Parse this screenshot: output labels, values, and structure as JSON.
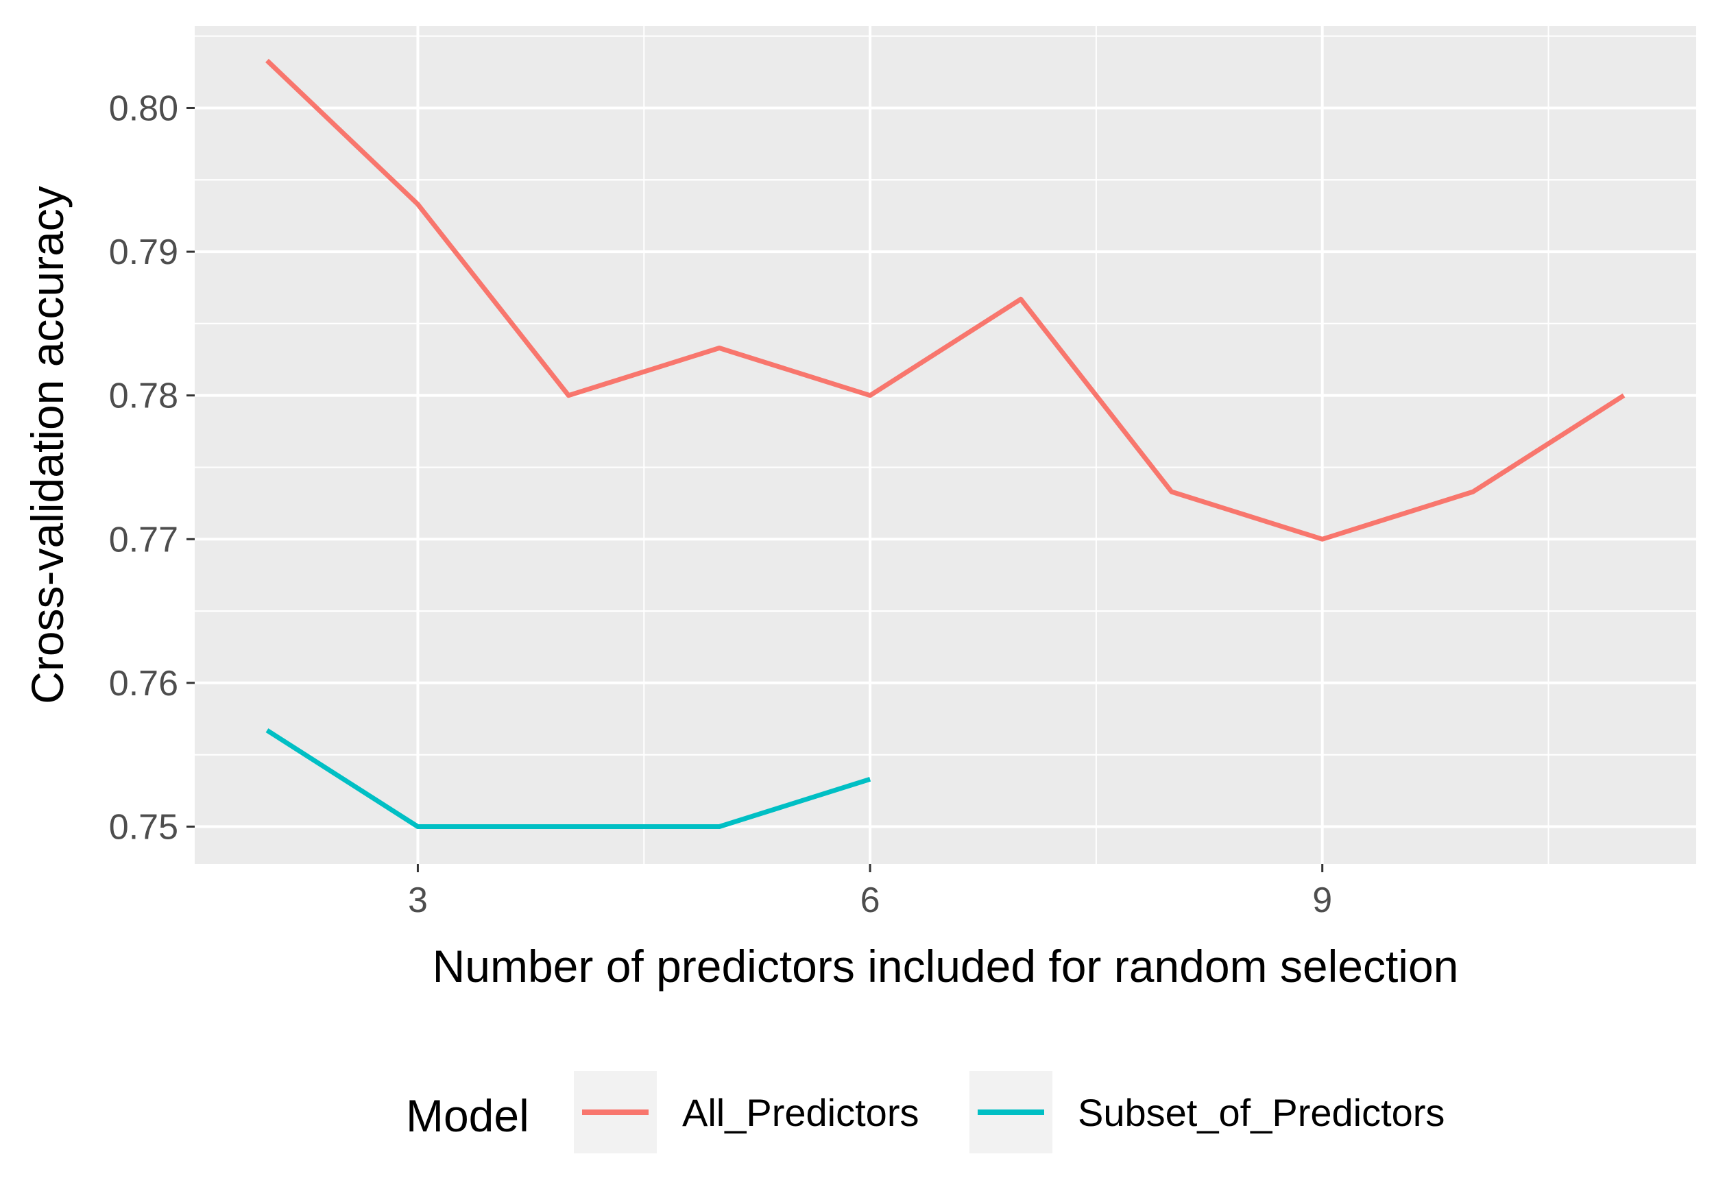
{
  "chart_data": {
    "type": "line",
    "xlabel": "Number of predictors included for random selection",
    "ylabel": "Cross-validation accuracy",
    "xlim": [
      1.52,
      11.48
    ],
    "ylim": [
      0.7474,
      0.8057
    ],
    "x_ticks": [
      3,
      6,
      9
    ],
    "x_tick_labels": [
      "3",
      "6",
      "9"
    ],
    "x_minor_ticks": [
      4.5,
      7.5,
      10.5
    ],
    "y_ticks": [
      0.75,
      0.76,
      0.77,
      0.78,
      0.79,
      0.8
    ],
    "y_tick_labels": [
      "0.75",
      "0.76",
      "0.77",
      "0.78",
      "0.79",
      "0.80"
    ],
    "grid": true,
    "legend": {
      "title": "Model",
      "position": "bottom"
    },
    "series": [
      {
        "name": "All_Predictors",
        "color": "#F8766D",
        "x": [
          2,
          3,
          4,
          5,
          6,
          7,
          8,
          9,
          10,
          11
        ],
        "y": [
          0.8033,
          0.7933,
          0.78,
          0.7833,
          0.78,
          0.7867,
          0.7733,
          0.77,
          0.7733,
          0.78
        ]
      },
      {
        "name": "Subset_of_Predictors",
        "color": "#00BFC4",
        "x": [
          2,
          3,
          4,
          5,
          6
        ],
        "y": [
          0.7567,
          0.75,
          0.75,
          0.75,
          0.7533
        ]
      }
    ]
  }
}
